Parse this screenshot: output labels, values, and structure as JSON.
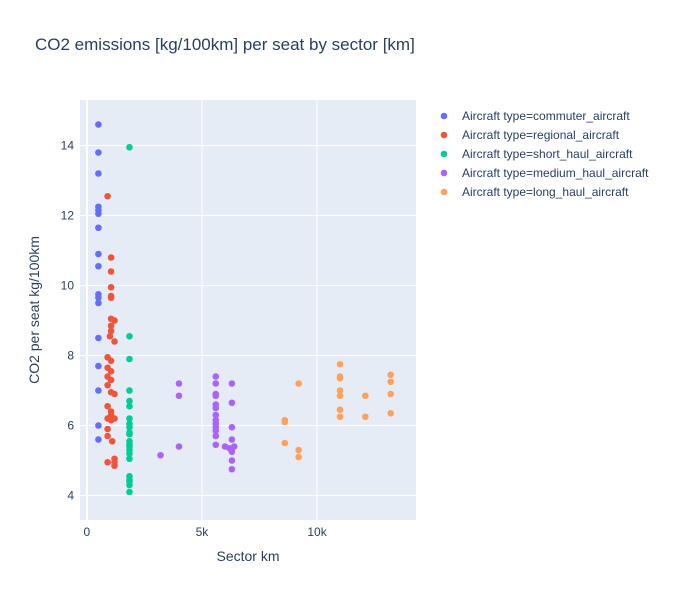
{
  "chart_data": {
    "type": "scatter",
    "title": "CO2 emissions [kg/100km] per seat by sector [km]",
    "xlabel": "Sector km",
    "ylabel": "CO2 per seat kg/100km",
    "xlim": [
      -300,
      14300
    ],
    "ylim": [
      3.3,
      15.3
    ],
    "x_ticks": [
      0,
      5000,
      10000
    ],
    "x_tick_labels": [
      "0",
      "5k",
      "10k"
    ],
    "y_ticks": [
      4,
      6,
      8,
      10,
      12,
      14
    ],
    "y_tick_labels": [
      "4",
      "6",
      "8",
      "10",
      "12",
      "14"
    ],
    "grid": true,
    "legend_position": "right",
    "series": [
      {
        "name": "Aircraft type=commuter_aircraft",
        "color": "#636efa",
        "points": [
          [
            500,
            14.6
          ],
          [
            500,
            13.8
          ],
          [
            500,
            13.2
          ],
          [
            500,
            12.25
          ],
          [
            500,
            12.15
          ],
          [
            500,
            12.05
          ],
          [
            500,
            11.65
          ],
          [
            500,
            10.9
          ],
          [
            500,
            10.55
          ],
          [
            500,
            9.75
          ],
          [
            500,
            9.65
          ],
          [
            500,
            9.5
          ],
          [
            500,
            8.5
          ],
          [
            500,
            7.7
          ],
          [
            500,
            7.0
          ],
          [
            500,
            6.0
          ],
          [
            500,
            5.6
          ]
        ]
      },
      {
        "name": "Aircraft type=regional_aircraft",
        "color": "#ef553b",
        "points": [
          [
            900,
            12.55
          ],
          [
            1050,
            10.8
          ],
          [
            1050,
            10.4
          ],
          [
            1050,
            9.95
          ],
          [
            1050,
            9.7
          ],
          [
            1050,
            9.65
          ],
          [
            1050,
            9.05
          ],
          [
            1200,
            9.0
          ],
          [
            1050,
            8.85
          ],
          [
            1050,
            8.7
          ],
          [
            1000,
            8.55
          ],
          [
            1200,
            8.4
          ],
          [
            900,
            7.95
          ],
          [
            1050,
            7.85
          ],
          [
            900,
            7.65
          ],
          [
            1050,
            7.55
          ],
          [
            900,
            7.4
          ],
          [
            1050,
            7.3
          ],
          [
            900,
            7.15
          ],
          [
            1050,
            6.95
          ],
          [
            1200,
            6.9
          ],
          [
            900,
            6.55
          ],
          [
            1050,
            6.4
          ],
          [
            900,
            6.2
          ],
          [
            1050,
            6.15
          ],
          [
            1200,
            6.2
          ],
          [
            1050,
            6.3
          ],
          [
            900,
            5.9
          ],
          [
            900,
            5.7
          ],
          [
            1100,
            5.55
          ],
          [
            1200,
            5.05
          ],
          [
            1200,
            4.95
          ],
          [
            900,
            4.95
          ],
          [
            1200,
            4.85
          ]
        ]
      },
      {
        "name": "Aircraft type=short_haul_aircraft",
        "color": "#00cc96",
        "points": [
          [
            1850,
            13.95
          ],
          [
            1850,
            8.55
          ],
          [
            1850,
            7.9
          ],
          [
            1850,
            7.0
          ],
          [
            1850,
            6.7
          ],
          [
            1850,
            6.55
          ],
          [
            1850,
            6.2
          ],
          [
            1850,
            6.05
          ],
          [
            1850,
            5.95
          ],
          [
            1850,
            5.8
          ],
          [
            1850,
            5.75
          ],
          [
            1850,
            5.55
          ],
          [
            1850,
            5.45
          ],
          [
            1850,
            5.4
          ],
          [
            1850,
            5.3
          ],
          [
            1850,
            5.2
          ],
          [
            1850,
            5.05
          ],
          [
            1850,
            4.55
          ],
          [
            1850,
            4.45
          ],
          [
            1850,
            4.4
          ],
          [
            1850,
            4.3
          ],
          [
            1850,
            4.1
          ]
        ]
      },
      {
        "name": "Aircraft type=medium_haul_aircraft",
        "color": "#ab63fa",
        "points": [
          [
            3200,
            5.15
          ],
          [
            4000,
            7.2
          ],
          [
            4000,
            6.85
          ],
          [
            4000,
            5.4
          ],
          [
            5600,
            7.4
          ],
          [
            5600,
            7.2
          ],
          [
            5600,
            6.9
          ],
          [
            5600,
            6.85
          ],
          [
            5600,
            6.6
          ],
          [
            5600,
            6.5
          ],
          [
            5600,
            6.3
          ],
          [
            5600,
            6.15
          ],
          [
            5600,
            6.05
          ],
          [
            5600,
            5.95
          ],
          [
            5600,
            5.85
          ],
          [
            5600,
            5.7
          ],
          [
            5600,
            5.45
          ],
          [
            6000,
            5.4
          ],
          [
            6200,
            5.35
          ],
          [
            6300,
            5.25
          ],
          [
            6400,
            5.4
          ],
          [
            6300,
            7.2
          ],
          [
            6300,
            6.65
          ],
          [
            6300,
            5.95
          ],
          [
            6300,
            5.6
          ],
          [
            6300,
            5.0
          ],
          [
            6300,
            4.75
          ]
        ]
      },
      {
        "name": "Aircraft type=long_haul_aircraft",
        "color": "#ffa15a",
        "points": [
          [
            8600,
            6.15
          ],
          [
            8600,
            6.1
          ],
          [
            8600,
            5.5
          ],
          [
            9200,
            7.2
          ],
          [
            9200,
            5.3
          ],
          [
            9200,
            5.1
          ],
          [
            11000,
            7.75
          ],
          [
            11000,
            7.4
          ],
          [
            11000,
            7.35
          ],
          [
            11000,
            7.0
          ],
          [
            11000,
            6.85
          ],
          [
            11000,
            6.45
          ],
          [
            11000,
            6.25
          ],
          [
            12100,
            6.85
          ],
          [
            12100,
            6.25
          ],
          [
            13200,
            7.45
          ],
          [
            13200,
            7.25
          ],
          [
            13200,
            6.9
          ],
          [
            13200,
            6.35
          ]
        ]
      }
    ]
  }
}
